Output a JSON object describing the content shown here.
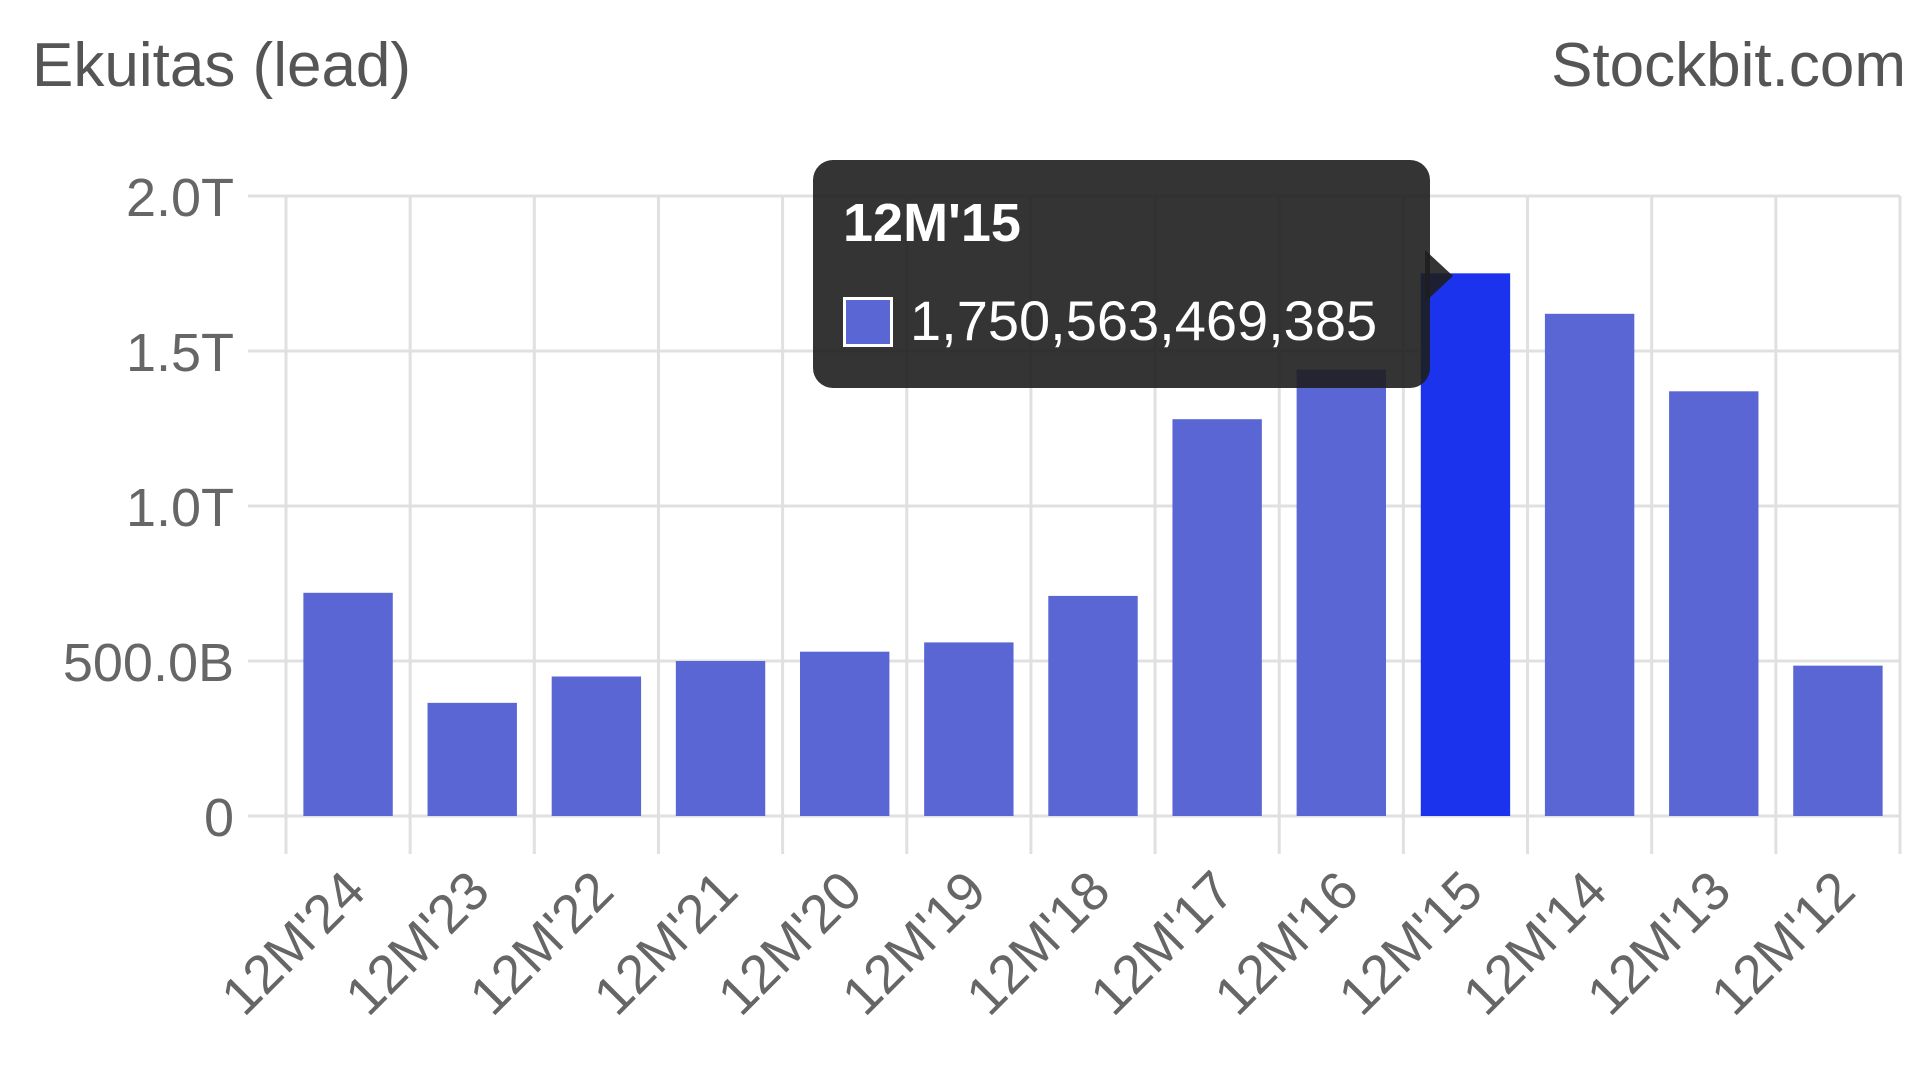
{
  "header": {
    "title": "Ekuitas (lead)",
    "brand": "Stockbit.com"
  },
  "tooltip": {
    "title": "12M'15",
    "value_label": "1,750,563,469,385"
  },
  "colors": {
    "bar": "#5966d4",
    "bar_highlight": "#1c33ee",
    "grid": "#e0e0e0",
    "axis_text": "#666666",
    "tooltip_bg": "#1e1e1e"
  },
  "chart_data": {
    "type": "bar",
    "categories": [
      "12M'24",
      "12M'23",
      "12M'22",
      "12M'21",
      "12M'20",
      "12M'19",
      "12M'18",
      "12M'17",
      "12M'16",
      "12M'15",
      "12M'14",
      "12M'13",
      "12M'12"
    ],
    "values": [
      720000000000,
      365000000000,
      450000000000,
      500000000000,
      530000000000,
      560000000000,
      710000000000,
      1280000000000,
      1440000000000,
      1750563469385,
      1620000000000,
      1370000000000,
      485000000000
    ],
    "highlighted_category": "12M'15",
    "title": "Ekuitas (lead)",
    "ylim": [
      0,
      2000000000000
    ],
    "yticks": [
      0,
      500000000000,
      1000000000000,
      1500000000000,
      2000000000000
    ],
    "ytick_labels": [
      "0",
      "500.0B",
      "1.0T",
      "1.5T",
      "2.0T"
    ],
    "grid": true,
    "legend": "none"
  }
}
